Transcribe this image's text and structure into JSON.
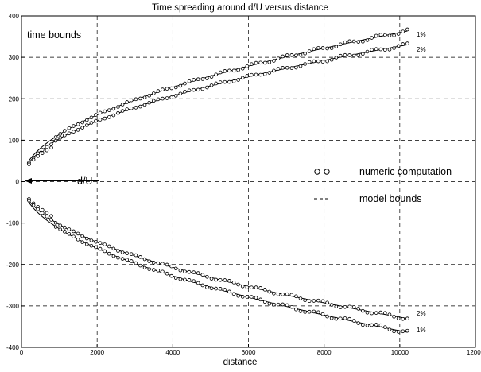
{
  "chart_data": {
    "type": "line",
    "title": "Time spreading around d/U versus distance",
    "xlabel": "distance",
    "ylabel": "",
    "xlim": [
      0,
      12000
    ],
    "ylim": [
      -400,
      400
    ],
    "xticks": [
      0,
      2000,
      4000,
      6000,
      8000,
      10000,
      12000
    ],
    "yticks": [
      -400,
      -300,
      -200,
      -100,
      0,
      100,
      200,
      300,
      400
    ],
    "grid": true,
    "grid_style": "dashed",
    "annotations": {
      "corner_label": "time bounds",
      "arrow_label": "d/U",
      "curve_labels": [
        {
          "text": "1%",
          "series": "upper 1%"
        },
        {
          "text": "2%",
          "series": "upper 2%"
        },
        {
          "text": "2%",
          "series": "lower 2%"
        },
        {
          "text": "1%",
          "series": "lower 1%"
        }
      ]
    },
    "legend": {
      "placement": "right-middle",
      "entries": [
        {
          "marker": "o o",
          "label": "numeric computation"
        },
        {
          "marker": "---",
          "label": "model bounds"
        }
      ]
    },
    "model_curves": [
      {
        "id": "upper 1%",
        "coef": 3.6,
        "sign": 1
      },
      {
        "id": "upper 2%",
        "coef": 3.27,
        "sign": 1
      },
      {
        "id": "lower 2%",
        "coef": 3.27,
        "sign": -1
      },
      {
        "id": "lower 1%",
        "coef": 3.6,
        "sign": -1
      }
    ],
    "model_x_range": [
      150,
      10200
    ],
    "numeric_x_range": [
      200,
      10200
    ],
    "numeric_points_per_series": 86,
    "series_note_color": "#000000"
  }
}
